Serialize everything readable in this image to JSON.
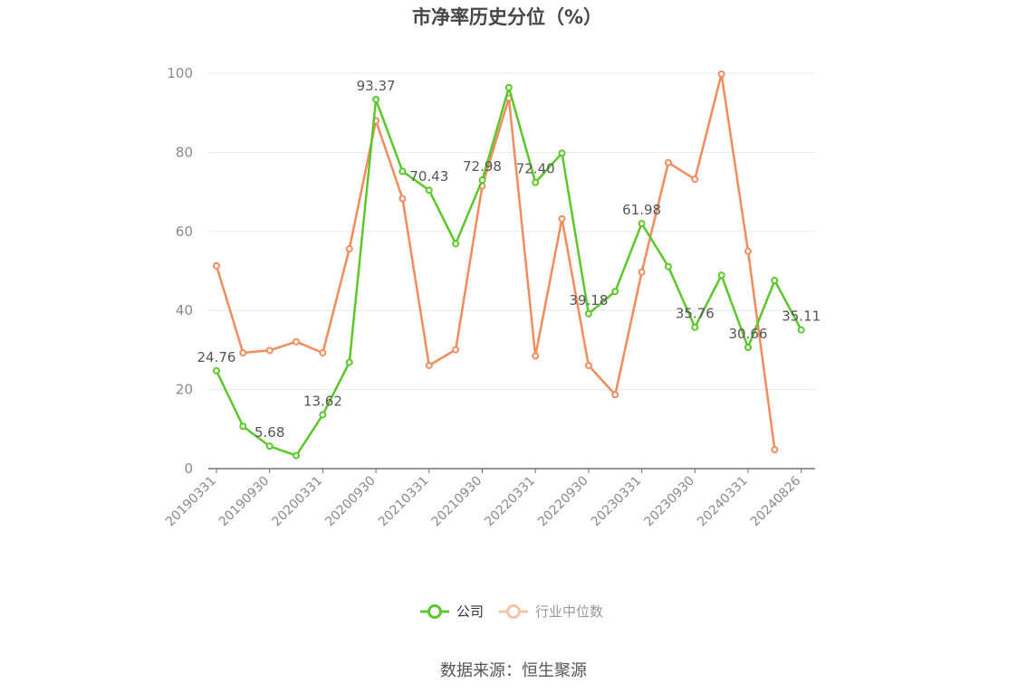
{
  "chart_data": {
    "type": "line",
    "title": "市净率历史分位（%）",
    "ylim": [
      0,
      100
    ],
    "y_ticks": [
      "0",
      "20",
      "40",
      "60",
      "80",
      "100"
    ],
    "x_tick_labels": [
      "20190331",
      "20190930",
      "20200331",
      "20200930",
      "20210331",
      "20210930",
      "20220331",
      "20220930",
      "20230331",
      "20230930",
      "20240331",
      "20240826"
    ],
    "x": [
      "20190331",
      "20190630",
      "20190930",
      "20191231",
      "20200331",
      "20200630",
      "20200930",
      "20201231",
      "20210331",
      "20210630",
      "20210930",
      "20211231",
      "20220331",
      "20220630",
      "20220930",
      "20221231",
      "20230331",
      "20230630",
      "20230930",
      "20231231",
      "20240331",
      "20240630",
      "20240826"
    ],
    "grid": true,
    "legend_position": "bottom",
    "series": [
      {
        "name": "公司",
        "color": "#5cc72a",
        "values": [
          24.76,
          10.7,
          5.68,
          3.3,
          13.62,
          26.9,
          93.37,
          75.2,
          70.43,
          56.9,
          72.98,
          96.4,
          72.4,
          79.8,
          39.18,
          44.8,
          61.98,
          51.1,
          35.76,
          48.9,
          30.66,
          47.6,
          35.11
        ],
        "labeled": {
          "0": "24.76",
          "2": "5.68",
          "4": "13.62",
          "6": "93.37",
          "8": "70.43",
          "10": "72.98",
          "12": "72.40",
          "14": "39.18",
          "16": "61.98",
          "18": "35.76",
          "20": "30.66",
          "22": "35.11"
        }
      },
      {
        "name": "行业中位数",
        "color": "#f28c5c",
        "values": [
          51.3,
          29.3,
          29.9,
          32.1,
          29.3,
          55.6,
          88.0,
          68.3,
          26.1,
          30.1,
          71.5,
          93.7,
          28.5,
          63.2,
          26.1,
          18.7,
          49.7,
          77.4,
          73.2,
          99.8,
          55.0,
          4.8,
          null
        ]
      }
    ]
  },
  "legend": {
    "company_label": "公司",
    "industry_label": "行业中位数"
  },
  "source": {
    "text": "数据来源：恒生聚源"
  }
}
